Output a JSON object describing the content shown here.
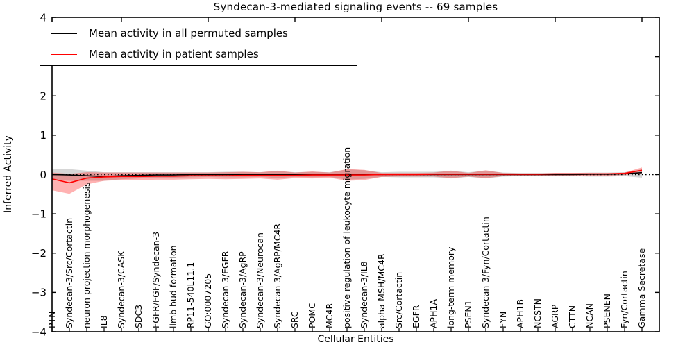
{
  "chart_data": {
    "type": "line",
    "title": "Syndecan-3-mediated signaling events -- 69 samples",
    "xlabel": "Cellular Entities",
    "ylabel": "Inferred Activity",
    "ylim": [
      -4,
      4
    ],
    "yticks": [
      -4,
      -3,
      -2,
      -1,
      0,
      1,
      2,
      3,
      4
    ],
    "grid": false,
    "legend_position": "upper-left",
    "baseline": {
      "y": 0,
      "style": "dotted",
      "color": "#000000"
    },
    "top_tick_indices": [
      4,
      9,
      14,
      19,
      24,
      29,
      34
    ],
    "categories": [
      "PTN",
      "Syndecan-3/Src/Cortactin",
      "neuron projection morphogenesis",
      "IL8",
      "Syndecan-3/CASK",
      "SDC3",
      "FGFR/FGF/Syndecan-3",
      "limb bud formation",
      "RP11-540L11.1",
      "GO:0007205",
      "Syndecan-3/EGFR",
      "Syndecan-3/AgRP",
      "Syndecan-3/Neurocan",
      "Syndecan-3/AgRP/MC4R",
      "SRC",
      "POMC",
      "MC4R",
      "positive regulation of leukocyte migration",
      "Syndecan-3/IL8",
      "alpha-MSH/MC4R",
      "Src/Cortactin",
      "EGFR",
      "APH1A",
      "long-term memory",
      "PSEN1",
      "Syndecan-3/Fyn/Cortactin",
      "FYN",
      "APH1B",
      "NCSTN",
      "AGRP",
      "CTTN",
      "NCAN",
      "PSENEN",
      "Fyn/Cortactin",
      "Gamma Secretase"
    ],
    "series": [
      {
        "name": "Mean activity in all permuted samples",
        "color": "#000000",
        "band_color": "rgba(0,0,0,0.16)",
        "values": [
          0.0,
          -0.01,
          -0.03,
          -0.05,
          -0.03,
          -0.02,
          -0.01,
          -0.01,
          0.0,
          0.0,
          0.0,
          0.0,
          0.0,
          0.0,
          0.0,
          0.0,
          0.0,
          0.0,
          0.0,
          0.0,
          0.0,
          0.0,
          0.0,
          0.0,
          0.0,
          0.0,
          0.0,
          0.0,
          0.0,
          0.0,
          0.0,
          0.01,
          0.01,
          0.02,
          0.05
        ],
        "band_upper": [
          0.13,
          0.14,
          0.1,
          0.06,
          0.06,
          0.06,
          0.06,
          0.06,
          0.06,
          0.06,
          0.07,
          0.07,
          0.06,
          0.09,
          0.06,
          0.07,
          0.06,
          0.13,
          0.11,
          0.06,
          0.07,
          0.07,
          0.07,
          0.1,
          0.06,
          0.1,
          0.05,
          0.04,
          0.04,
          0.04,
          0.04,
          0.05,
          0.05,
          0.06,
          0.13
        ],
        "band_lower": [
          -0.13,
          -0.16,
          -0.16,
          -0.16,
          -0.12,
          -0.1,
          -0.08,
          -0.08,
          -0.07,
          -0.06,
          -0.07,
          -0.07,
          -0.06,
          -0.09,
          -0.06,
          -0.07,
          -0.06,
          -0.13,
          -0.11,
          -0.06,
          -0.07,
          -0.07,
          -0.07,
          -0.1,
          -0.06,
          -0.1,
          -0.05,
          -0.04,
          -0.04,
          -0.04,
          -0.04,
          -0.05,
          -0.05,
          -0.04,
          -0.08
        ]
      },
      {
        "name": "Mean activity in patient samples",
        "color": "#ff0000",
        "band_color": "rgba(255,0,0,0.30)",
        "values": [
          -0.11,
          -0.21,
          -0.09,
          -0.06,
          -0.05,
          -0.05,
          -0.04,
          -0.04,
          -0.03,
          -0.03,
          -0.03,
          -0.02,
          -0.02,
          -0.02,
          -0.02,
          -0.01,
          -0.01,
          -0.01,
          -0.01,
          0.0,
          0.0,
          0.0,
          0.01,
          0.01,
          0.01,
          0.01,
          0.01,
          0.01,
          0.01,
          0.02,
          0.02,
          0.02,
          0.02,
          0.03,
          0.11
        ],
        "band_upper": [
          0.05,
          0.02,
          0.06,
          0.05,
          0.05,
          0.05,
          0.05,
          0.05,
          0.05,
          0.05,
          0.06,
          0.07,
          0.06,
          0.1,
          0.05,
          0.08,
          0.05,
          0.14,
          0.12,
          0.04,
          0.04,
          0.04,
          0.05,
          0.1,
          0.04,
          0.11,
          0.04,
          0.03,
          0.03,
          0.03,
          0.03,
          0.03,
          0.03,
          0.05,
          0.18
        ],
        "band_lower": [
          -0.4,
          -0.49,
          -0.25,
          -0.16,
          -0.14,
          -0.14,
          -0.13,
          -0.13,
          -0.12,
          -0.11,
          -0.12,
          -0.11,
          -0.1,
          -0.13,
          -0.09,
          -0.1,
          -0.08,
          -0.16,
          -0.14,
          -0.06,
          -0.05,
          -0.05,
          -0.05,
          -0.09,
          -0.05,
          -0.09,
          -0.04,
          -0.03,
          -0.03,
          -0.03,
          -0.03,
          -0.03,
          -0.03,
          -0.01,
          0.03
        ]
      }
    ]
  }
}
